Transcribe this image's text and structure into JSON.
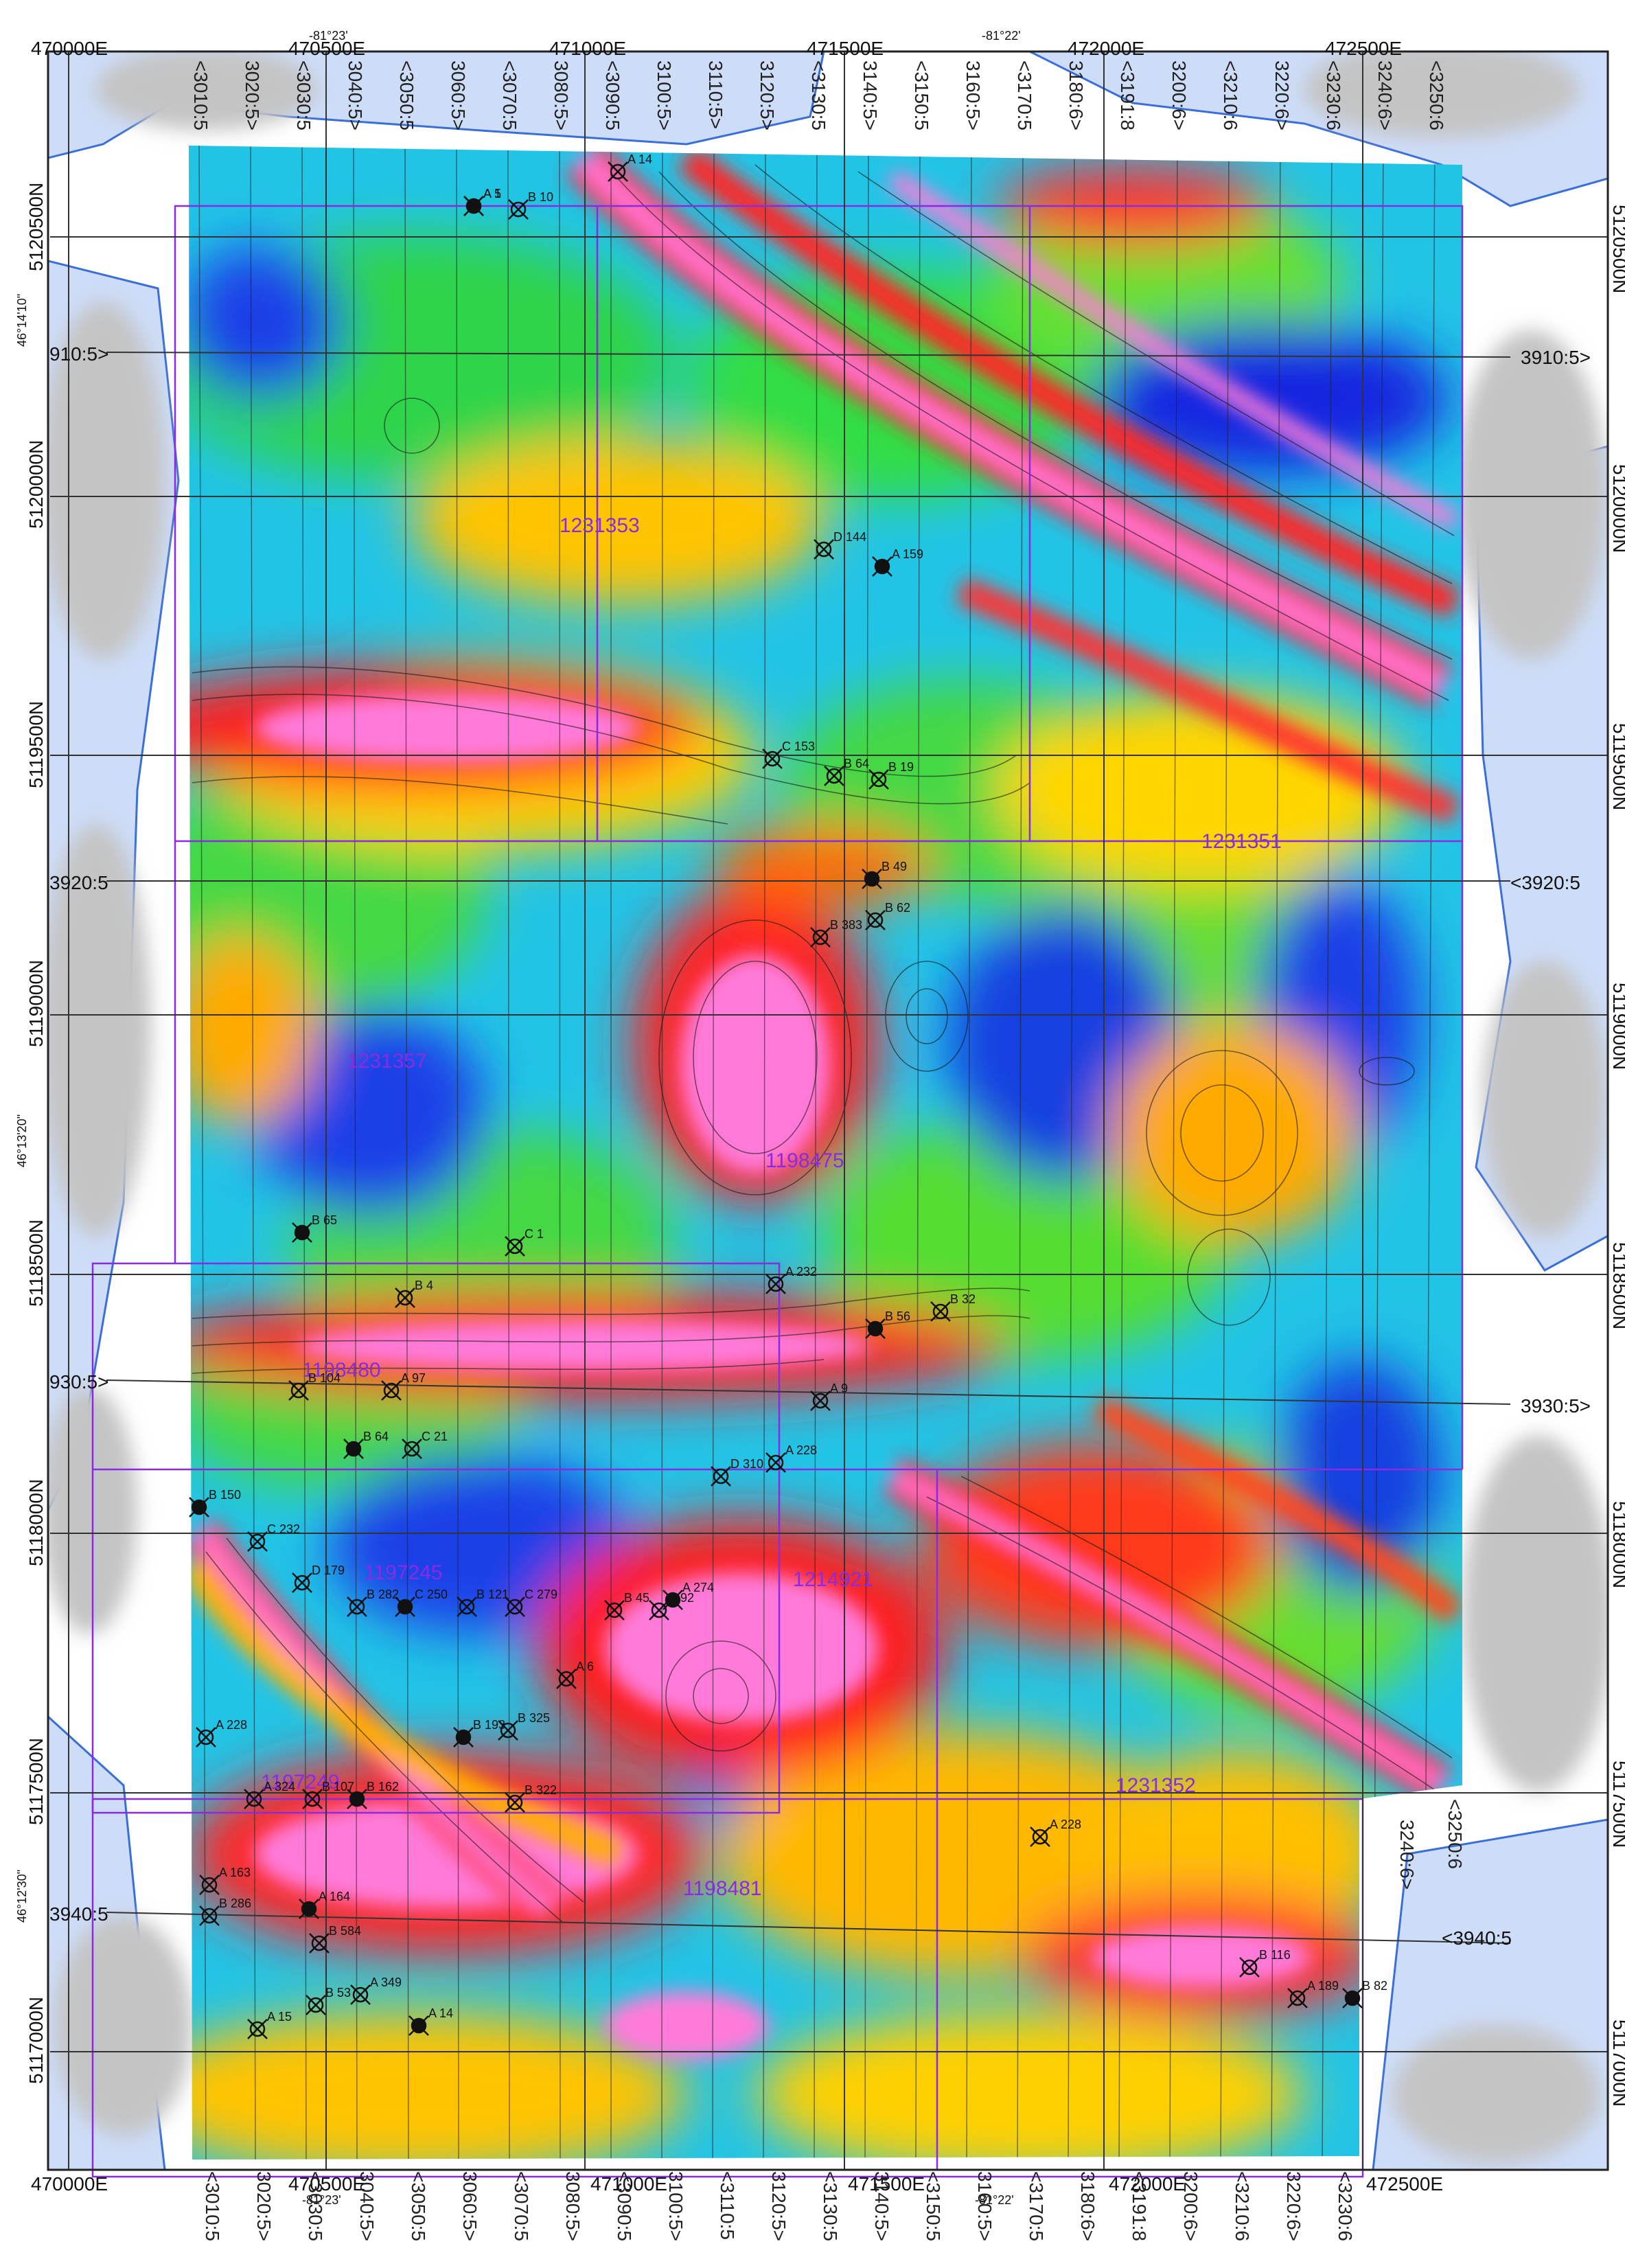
{
  "map": {
    "bg_colors": {
      "water": "#cddcf7",
      "land": "#ffffff",
      "relief": "#c8c8c8",
      "claim": "#8a2be2"
    },
    "easting_top": [
      "470000E",
      "470500E",
      "471000E",
      "471500E",
      "472000E",
      "472500E"
    ],
    "easting_bottom": [
      "470000E",
      "470500E",
      "471000E",
      "471500E",
      "472000E",
      "472500E"
    ],
    "longitude_top": [
      "-81°23'",
      "-81°22'"
    ],
    "longitude_bottom": [
      "-81°23'",
      "-81°22'"
    ],
    "northing_left": [
      "5120500N",
      "5120000N",
      "5119500N",
      "5119000N",
      "5118500N",
      "5118000N",
      "5117500N",
      "5117000N"
    ],
    "northing_right": [
      "5120500N",
      "5120000N",
      "5119500N",
      "5119000N",
      "5118500N",
      "5118000N",
      "5117500N",
      "5117000N"
    ],
    "latitude_left": [
      "46°14'10\"",
      "46°13'20\"",
      "46°12'30\""
    ],
    "lines_top": [
      "<3010:5",
      "3020:5>",
      "<3030:5",
      "3040:5>",
      "<3050:5",
      "3060:5>",
      "<3070:5",
      "3080:5>",
      "<3090:5",
      "3100:5>",
      "3110:5>",
      "3120:5>",
      "<3130:5",
      "3140:5>",
      "<3150:5",
      "3160:5>",
      "<3170:5",
      "3180:6>",
      "<3191:8",
      "3200:6>",
      "<3210:6",
      "3220:6>",
      "<3230:6",
      "3240:6>",
      "<3250:6"
    ],
    "lines_bottom": [
      "<3010:5",
      "3020:5>",
      "<3030:5",
      "3040:5>",
      "<3050:5",
      "3060:5>",
      "<3070:5",
      "3080:5>",
      "<3090:5",
      "3100:5>",
      "<3110:5",
      "3120:5>",
      "<3130:5",
      "3140:5>",
      "<3150:5",
      "3160:5>",
      "<3170:5",
      "3180:6>",
      "<3191:8",
      "3200:6>",
      "<3210:6",
      "3220:6>",
      "<3230:6"
    ],
    "lines_right_side": [
      "<3250:6",
      "3240:6>"
    ],
    "tie_lines": [
      {
        "left": "910:5>",
        "right": "3910:5>"
      },
      {
        "left": "3920:5",
        "right": "<3920:5"
      },
      {
        "left": "930:5>",
        "right": "3930:5>"
      },
      {
        "left": "3940:5",
        "right": "<3940:5"
      }
    ],
    "claims": [
      "1231353",
      "1231351",
      "1231357",
      "1198475",
      "1198480",
      "1197245",
      "1214921",
      "1197249",
      "1231352",
      "1198481"
    ],
    "anomalies": [
      "A 5",
      "B 10",
      "A 14",
      "D 144",
      "A 159",
      "C 153",
      "B 64",
      "B 19",
      "B 49",
      "B 62",
      "B 383",
      "C 1",
      "B 65",
      "B 4",
      "A 232",
      "B 32",
      "B 56",
      "A 9",
      "B 104",
      "A 97",
      "B 64",
      "C 21",
      "A 228",
      "D 310",
      "B 150",
      "C 232",
      "D 179",
      "B 282",
      "C 250",
      "B 121",
      "C 279",
      "B 45",
      "A 274",
      "B 92",
      "A 6",
      "A 228",
      "B 193",
      "B 325",
      "B 322",
      "A 324",
      "B 162",
      "B 107",
      "A 163",
      "B 286",
      "A 164",
      "B 584",
      "A 349",
      "B 53",
      "A 14",
      "A 15",
      "B 116",
      "A 189",
      "B 82",
      "A 228",
      "A 1"
    ]
  }
}
